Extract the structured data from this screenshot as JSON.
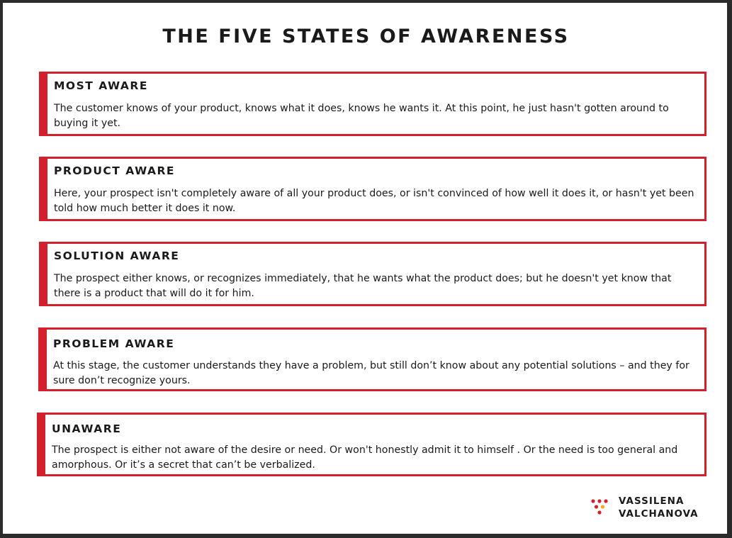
{
  "title": "THE FIVE STATES OF AWARENESS",
  "accent_color": "#d4202c",
  "states": [
    {
      "heading": "MOST AWARE",
      "description": "The customer knows of your product, knows what it does, knows he wants it. At this point, he just hasn't gotten around to buying it yet."
    },
    {
      "heading": "PRODUCT AWARE",
      "description": "Here, your prospect isn't completely aware of all your product does, or isn't convinced of how well it does it, or hasn't yet been told how much better it does it now."
    },
    {
      "heading": "SOLUTION AWARE",
      "description": "The prospect either knows, or recognizes immediately, that he wants what the product does; but he doesn't yet know that there is a product that will do it for him."
    },
    {
      "heading": "PROBLEM AWARE",
      "description": "At this stage, the customer understands they have a problem, but still don’t know about any potential solutions – and they for sure don’t recognize yours."
    },
    {
      "heading": "UNAWARE",
      "description": "The prospect is either not aware of the desire or need. Or won't honestly admit it to himself . Or the need is too general and amorphous. Or it’s a secret that can’t be verbalized."
    }
  ],
  "logo": {
    "line1": "VASSILENA",
    "line2": "VALCHANOVA",
    "dot_colors": [
      "#d4202c",
      "#f5a623"
    ]
  }
}
